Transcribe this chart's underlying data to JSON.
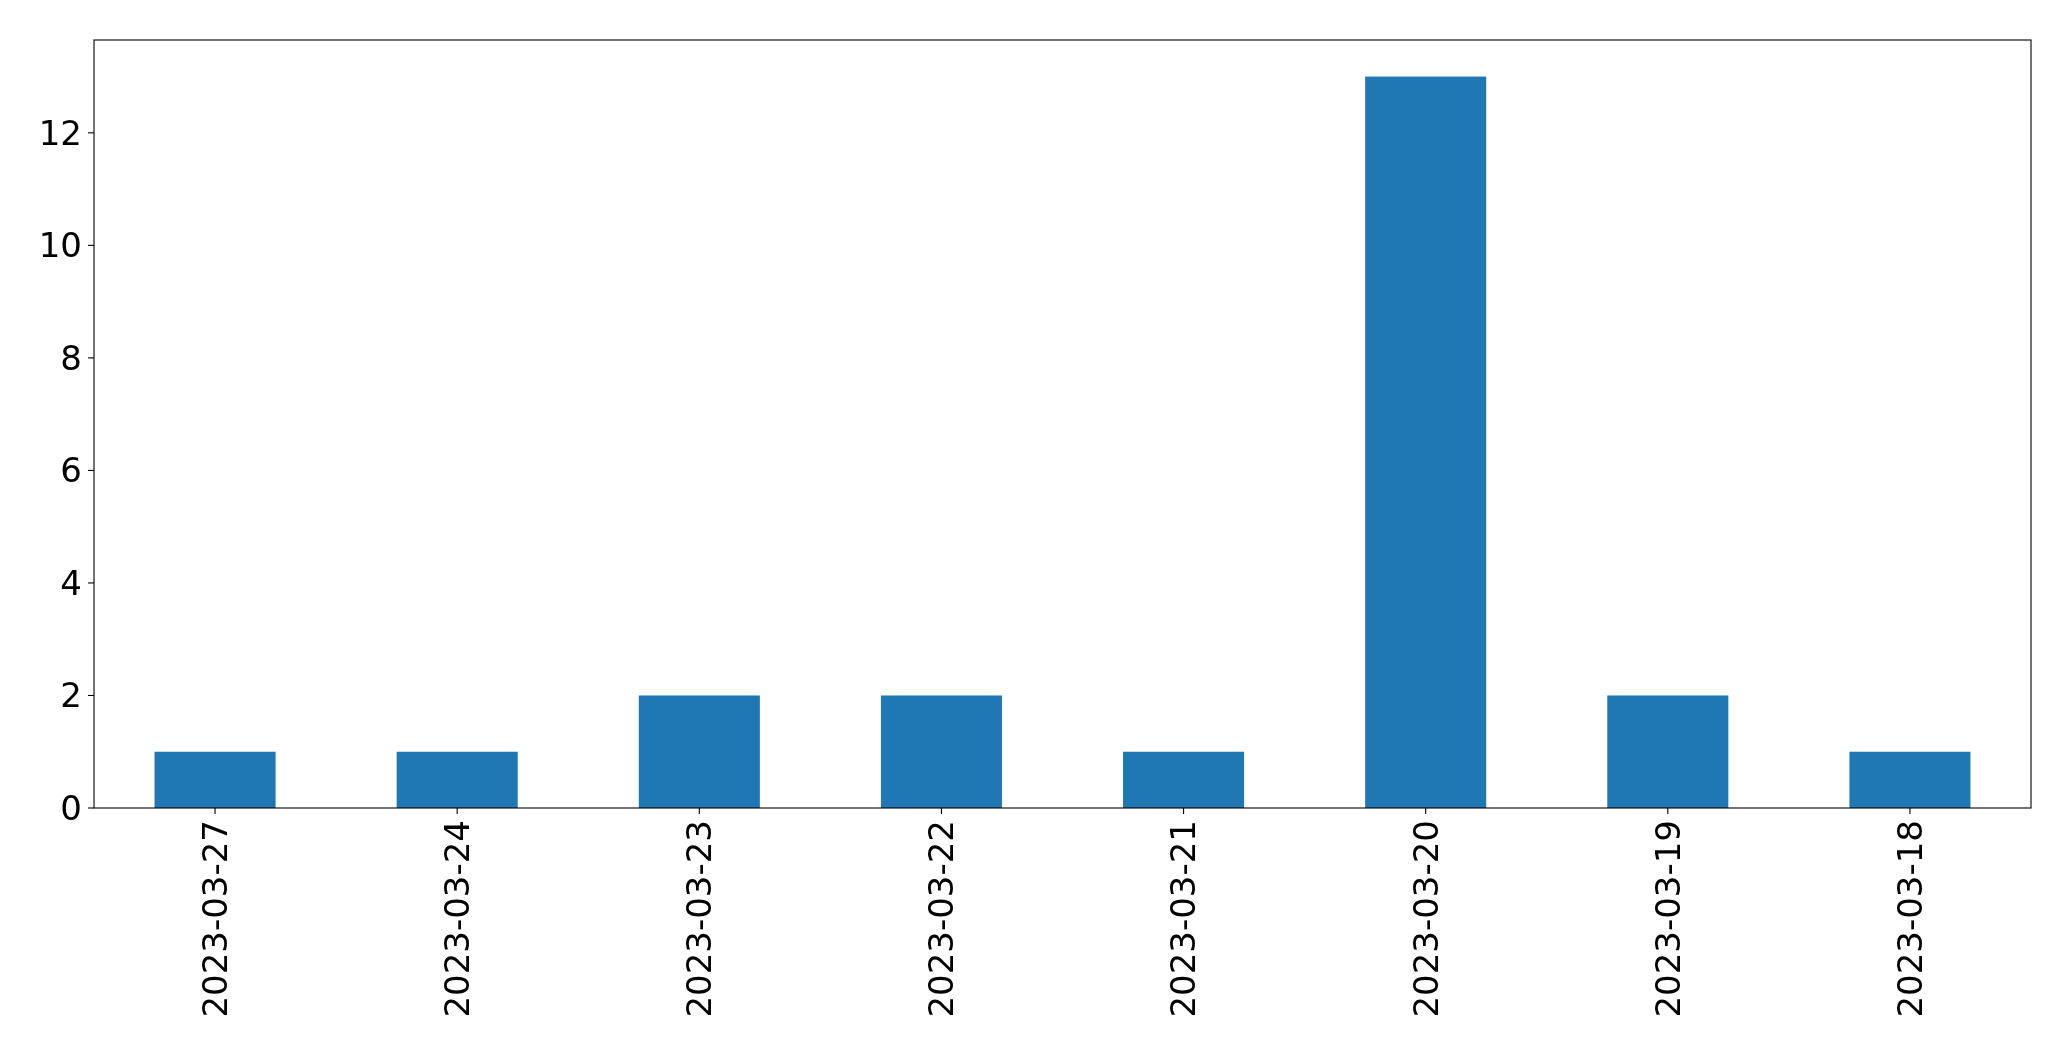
{
  "chart_data": {
    "type": "bar",
    "categories": [
      "2023-03-27",
      "2023-03-24",
      "2023-03-23",
      "2023-03-22",
      "2023-03-21",
      "2023-03-20",
      "2023-03-19",
      "2023-03-18"
    ],
    "values": [
      1,
      1,
      2,
      2,
      1,
      13,
      2,
      1
    ],
    "color": "#1f77b4",
    "ylim": [
      0,
      13.65
    ],
    "yticks": [
      0,
      2,
      4,
      6,
      8,
      10,
      12
    ],
    "grid": false
  }
}
